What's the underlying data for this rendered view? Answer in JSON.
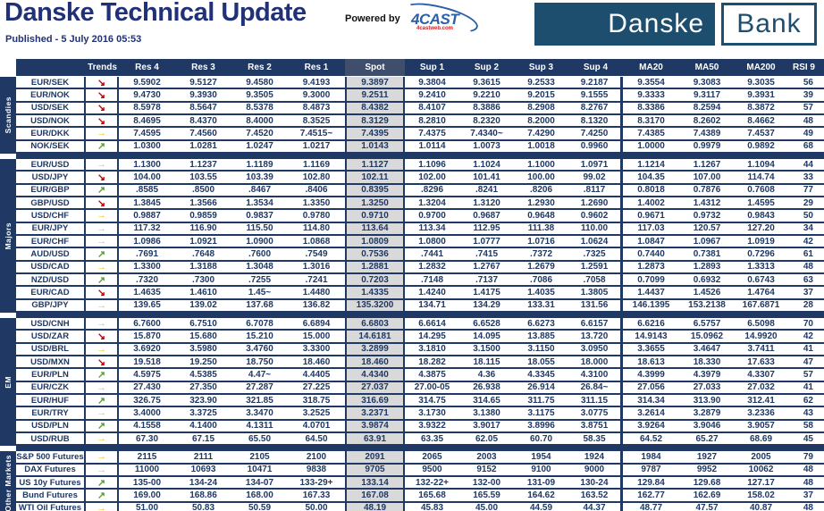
{
  "header": {
    "title": "Danske Technical Update",
    "published": "Published - 5 July 2016 05:53",
    "powered_by": "Powered by",
    "logo_4cast": {
      "text": "4CAST",
      "sub": "4castweb.com"
    },
    "bank_logo": {
      "left": "Danske",
      "right": "Bank"
    }
  },
  "colors": {
    "navy": "#1F3864",
    "spotbg": "#D9D9D9",
    "spothdr": "#3E4E6B",
    "up": "#5A9E32",
    "flat": "#FFC000",
    "down": "#C00000",
    "title": "#203177",
    "logo": "#1D4E6E",
    "castblue": "#2B5FA8",
    "castred": "#CC2027"
  },
  "trend_icons": {
    "down": "↘",
    "flat": "→",
    "up": "↗"
  },
  "table": {
    "columns": [
      "Trends",
      "Res 4",
      "Res 3",
      "Res 2",
      "Res 1",
      "Spot",
      "Sup 1",
      "Sup 2",
      "Sup 3",
      "Sup 4",
      "MA20",
      "MA50",
      "MA200",
      "RSI 9"
    ],
    "groups": [
      {
        "label": "Scandies",
        "rows": [
          {
            "name": "EUR/SEK",
            "trend": "down",
            "values": [
              "9.5902",
              "9.5127",
              "9.4580",
              "9.4193",
              "9.3897",
              "9.3804",
              "9.3615",
              "9.2533",
              "9.2187",
              "9.3554",
              "9.3083",
              "9.3035",
              "56"
            ]
          },
          {
            "name": "EUR/NOK",
            "trend": "down",
            "values": [
              "9.4730",
              "9.3930",
              "9.3505",
              "9.3000",
              "9.2511",
              "9.2410",
              "9.2210",
              "9.2015",
              "9.1555",
              "9.3333",
              "9.3117",
              "9.3931",
              "39"
            ]
          },
          {
            "name": "USD/SEK",
            "trend": "down",
            "values": [
              "8.5978",
              "8.5647",
              "8.5378",
              "8.4873",
              "8.4382",
              "8.4107",
              "8.3886",
              "8.2908",
              "8.2767",
              "8.3386",
              "8.2594",
              "8.3872",
              "57"
            ]
          },
          {
            "name": "USD/NOK",
            "trend": "down",
            "values": [
              "8.4695",
              "8.4370",
              "8.4000",
              "8.3525",
              "8.3129",
              "8.2810",
              "8.2320",
              "8.2000",
              "8.1320",
              "8.3170",
              "8.2602",
              "8.4662",
              "48"
            ]
          },
          {
            "name": "EUR/DKK",
            "trend": "flat",
            "values": [
              "7.4595",
              "7.4560",
              "7.4520",
              "7.4515~",
              "7.4395",
              "7.4375",
              "7.4340~",
              "7.4290",
              "7.4250",
              "7.4385",
              "7.4389",
              "7.4537",
              "49"
            ]
          },
          {
            "name": "NOK/SEK",
            "trend": "up",
            "values": [
              "1.0300",
              "1.0281",
              "1.0247",
              "1.0217",
              "1.0143",
              "1.0114",
              "1.0073",
              "1.0018",
              "0.9960",
              "1.0000",
              "0.9979",
              "0.9892",
              "68"
            ]
          }
        ]
      },
      {
        "label": "Majors",
        "rows": [
          {
            "name": "EUR/USD",
            "trend": "flat",
            "values": [
              "1.1300",
              "1.1237",
              "1.1189",
              "1.1169",
              "1.1127",
              "1.1096",
              "1.1024",
              "1.1000",
              "1.0971",
              "1.1214",
              "1.1267",
              "1.1094",
              "44"
            ]
          },
          {
            "name": "USD/JPY",
            "trend": "down",
            "values": [
              "104.00",
              "103.55",
              "103.39",
              "102.80",
              "102.11",
              "102.00",
              "101.41",
              "100.00",
              "99.02",
              "104.35",
              "107.00",
              "114.74",
              "33"
            ]
          },
          {
            "name": "EUR/GBP",
            "trend": "up",
            "values": [
              ".8585",
              ".8500",
              ".8467",
              ".8406",
              "0.8395",
              ".8296",
              ".8241",
              ".8206",
              ".8117",
              "0.8018",
              "0.7876",
              "0.7608",
              "77"
            ]
          },
          {
            "name": "GBP/USD",
            "trend": "down",
            "values": [
              "1.3845",
              "1.3566",
              "1.3534",
              "1.3350",
              "1.3250",
              "1.3204",
              "1.3120",
              "1.2930",
              "1.2690",
              "1.4002",
              "1.4312",
              "1.4595",
              "29"
            ]
          },
          {
            "name": "USD/CHF",
            "trend": "flat",
            "values": [
              "0.9887",
              "0.9859",
              "0.9837",
              "0.9780",
              "0.9710",
              "0.9700",
              "0.9687",
              "0.9648",
              "0.9602",
              "0.9671",
              "0.9732",
              "0.9843",
              "50"
            ]
          },
          {
            "name": "EUR/JPY",
            "trend": "flat",
            "values": [
              "117.32",
              "116.90",
              "115.50",
              "114.80",
              "113.64",
              "113.34",
              "112.95",
              "111.38",
              "110.00",
              "117.03",
              "120.57",
              "127.20",
              "34"
            ]
          },
          {
            "name": "EUR/CHF",
            "trend": "flat",
            "values": [
              "1.0986",
              "1.0921",
              "1.0900",
              "1.0868",
              "1.0809",
              "1.0800",
              "1.0777",
              "1.0716",
              "1.0624",
              "1.0847",
              "1.0967",
              "1.0919",
              "42"
            ]
          },
          {
            "name": "AUD/USD",
            "trend": "up",
            "values": [
              ".7691",
              ".7648",
              ".7600",
              ".7549",
              "0.7536",
              ".7441",
              ".7415",
              ".7372",
              ".7325",
              "0.7440",
              "0.7381",
              "0.7296",
              "61"
            ]
          },
          {
            "name": "USD/CAD",
            "trend": "flat",
            "values": [
              "1.3300",
              "1.3188",
              "1.3048",
              "1.3016",
              "1.2881",
              "1.2832",
              "1.2767",
              "1.2679",
              "1.2591",
              "1.2873",
              "1.2893",
              "1.3313",
              "48"
            ]
          },
          {
            "name": "NZD/USD",
            "trend": "up",
            "values": [
              ".7320",
              ".7300",
              ".7255",
              ".7241",
              "0.7203",
              ".7148",
              ".7137",
              ".7086",
              ".7058",
              "0.7099",
              "0.6932",
              "0.6743",
              "63"
            ]
          },
          {
            "name": "EUR/CAD",
            "trend": "down",
            "values": [
              "1.4635",
              "1.4610",
              "1.45~",
              "1.4480",
              "1.4335",
              "1.4240",
              "1.4175",
              "1.4035",
              "1.3805",
              "1.4437",
              "1.4526",
              "1.4764",
              "37"
            ]
          },
          {
            "name": "GBP/JPY",
            "trend": "flat",
            "values": [
              "139.65",
              "139.02",
              "137.68",
              "136.82",
              "135.3200",
              "134.71",
              "134.29",
              "133.31",
              "131.56",
              "146.1395",
              "153.2138",
              "167.6871",
              "28"
            ]
          }
        ]
      },
      {
        "label": "EM",
        "rows": [
          {
            "name": "USD/CNH",
            "trend": "flat",
            "values": [
              "6.7600",
              "6.7510",
              "6.7078",
              "6.6894",
              "6.6803",
              "6.6614",
              "6.6528",
              "6.6273",
              "6.6157",
              "6.6216",
              "6.5757",
              "6.5098",
              "70"
            ]
          },
          {
            "name": "USD/ZAR",
            "trend": "down",
            "values": [
              "15.870",
              "15.680",
              "15.210",
              "15.000",
              "14.6181",
              "14.295",
              "14.095",
              "13.885",
              "13.720",
              "14.9143",
              "15.0962",
              "14.9920",
              "42"
            ]
          },
          {
            "name": "USD/BRL",
            "trend": "flat",
            "values": [
              "3.6920",
              "3.5980",
              "3.4760",
              "3.3300",
              "3.2899",
              "3.1810",
              "3.1500",
              "3.1150",
              "3.0950",
              "3.3655",
              "3.4647",
              "3.7411",
              "41"
            ]
          },
          {
            "name": "USD/MXN",
            "trend": "down",
            "values": [
              "19.518",
              "19.250",
              "18.750",
              "18.460",
              "18.460",
              "18.282",
              "18.115",
              "18.055",
              "18.000",
              "18.613",
              "18.330",
              "17.633",
              "47"
            ]
          },
          {
            "name": "EUR/PLN",
            "trend": "up",
            "values": [
              "4.5975",
              "4.5385",
              "4.47~",
              "4.4405",
              "4.4340",
              "4.3875",
              "4.36",
              "4.3345",
              "4.3100",
              "4.3999",
              "4.3979",
              "4.3307",
              "57"
            ]
          },
          {
            "name": "EUR/CZK",
            "trend": "flat",
            "values": [
              "27.430",
              "27.350",
              "27.287",
              "27.225",
              "27.037",
              "27.00-05",
              "26.938",
              "26.914",
              "26.84~",
              "27.056",
              "27.033",
              "27.032",
              "41"
            ]
          },
          {
            "name": "EUR/HUF",
            "trend": "up",
            "values": [
              "326.75",
              "323.90",
              "321.85",
              "318.75",
              "316.69",
              "314.75",
              "314.65",
              "311.75",
              "311.15",
              "314.34",
              "313.90",
              "312.41",
              "62"
            ]
          },
          {
            "name": "EUR/TRY",
            "trend": "flat",
            "values": [
              "3.4000",
              "3.3725",
              "3.3470",
              "3.2525",
              "3.2371",
              "3.1730",
              "3.1380",
              "3.1175",
              "3.0775",
              "3.2614",
              "3.2879",
              "3.2336",
              "43"
            ]
          },
          {
            "name": "USD/PLN",
            "trend": "up",
            "values": [
              "4.1558",
              "4.1400",
              "4.1311",
              "4.0701",
              "3.9874",
              "3.9322",
              "3.9017",
              "3.8996",
              "3.8751",
              "3.9264",
              "3.9046",
              "3.9057",
              "58"
            ]
          },
          {
            "name": "USD/RUB",
            "trend": "flat",
            "values": [
              "67.30",
              "67.15",
              "65.50",
              "64.50",
              "63.91",
              "63.35",
              "62.05",
              "60.70",
              "58.35",
              "64.52",
              "65.27",
              "68.69",
              "45"
            ]
          }
        ]
      },
      {
        "label": "Other Markets",
        "rows": [
          {
            "name": "S&P 500 Futures",
            "trend": "flat",
            "values": [
              "2115",
              "2111",
              "2105",
              "2100",
              "2091",
              "2065",
              "2003",
              "1954",
              "1924",
              "1984",
              "1927",
              "2005",
              "79"
            ]
          },
          {
            "name": "DAX Futures",
            "trend": "flat",
            "values": [
              "11000",
              "10693",
              "10471",
              "9838",
              "9705",
              "9500",
              "9152",
              "9100",
              "9000",
              "9787",
              "9952",
              "10062",
              "48"
            ]
          },
          {
            "name": "US 10y Futures",
            "trend": "up",
            "values": [
              "135-00",
              "134-24",
              "134-07",
              "133-29+",
              "133.14",
              "132-22+",
              "132-00",
              "131-09",
              "130-24",
              "129.84",
              "129.68",
              "127.17",
              "48"
            ]
          },
          {
            "name": "Bund Futures",
            "trend": "up",
            "values": [
              "169.00",
              "168.86",
              "168.00",
              "167.33",
              "167.08",
              "165.68",
              "165.59",
              "164.62",
              "163.52",
              "162.77",
              "162.69",
              "158.02",
              "37"
            ]
          },
          {
            "name": "WTI Oil Futures",
            "trend": "flat",
            "values": [
              "51.00",
              "50.83",
              "50.59",
              "50.00",
              "48.19",
              "45.83",
              "45.00",
              "44.59",
              "44.37",
              "48.77",
              "47.57",
              "40.87",
              "48"
            ]
          }
        ]
      }
    ]
  }
}
